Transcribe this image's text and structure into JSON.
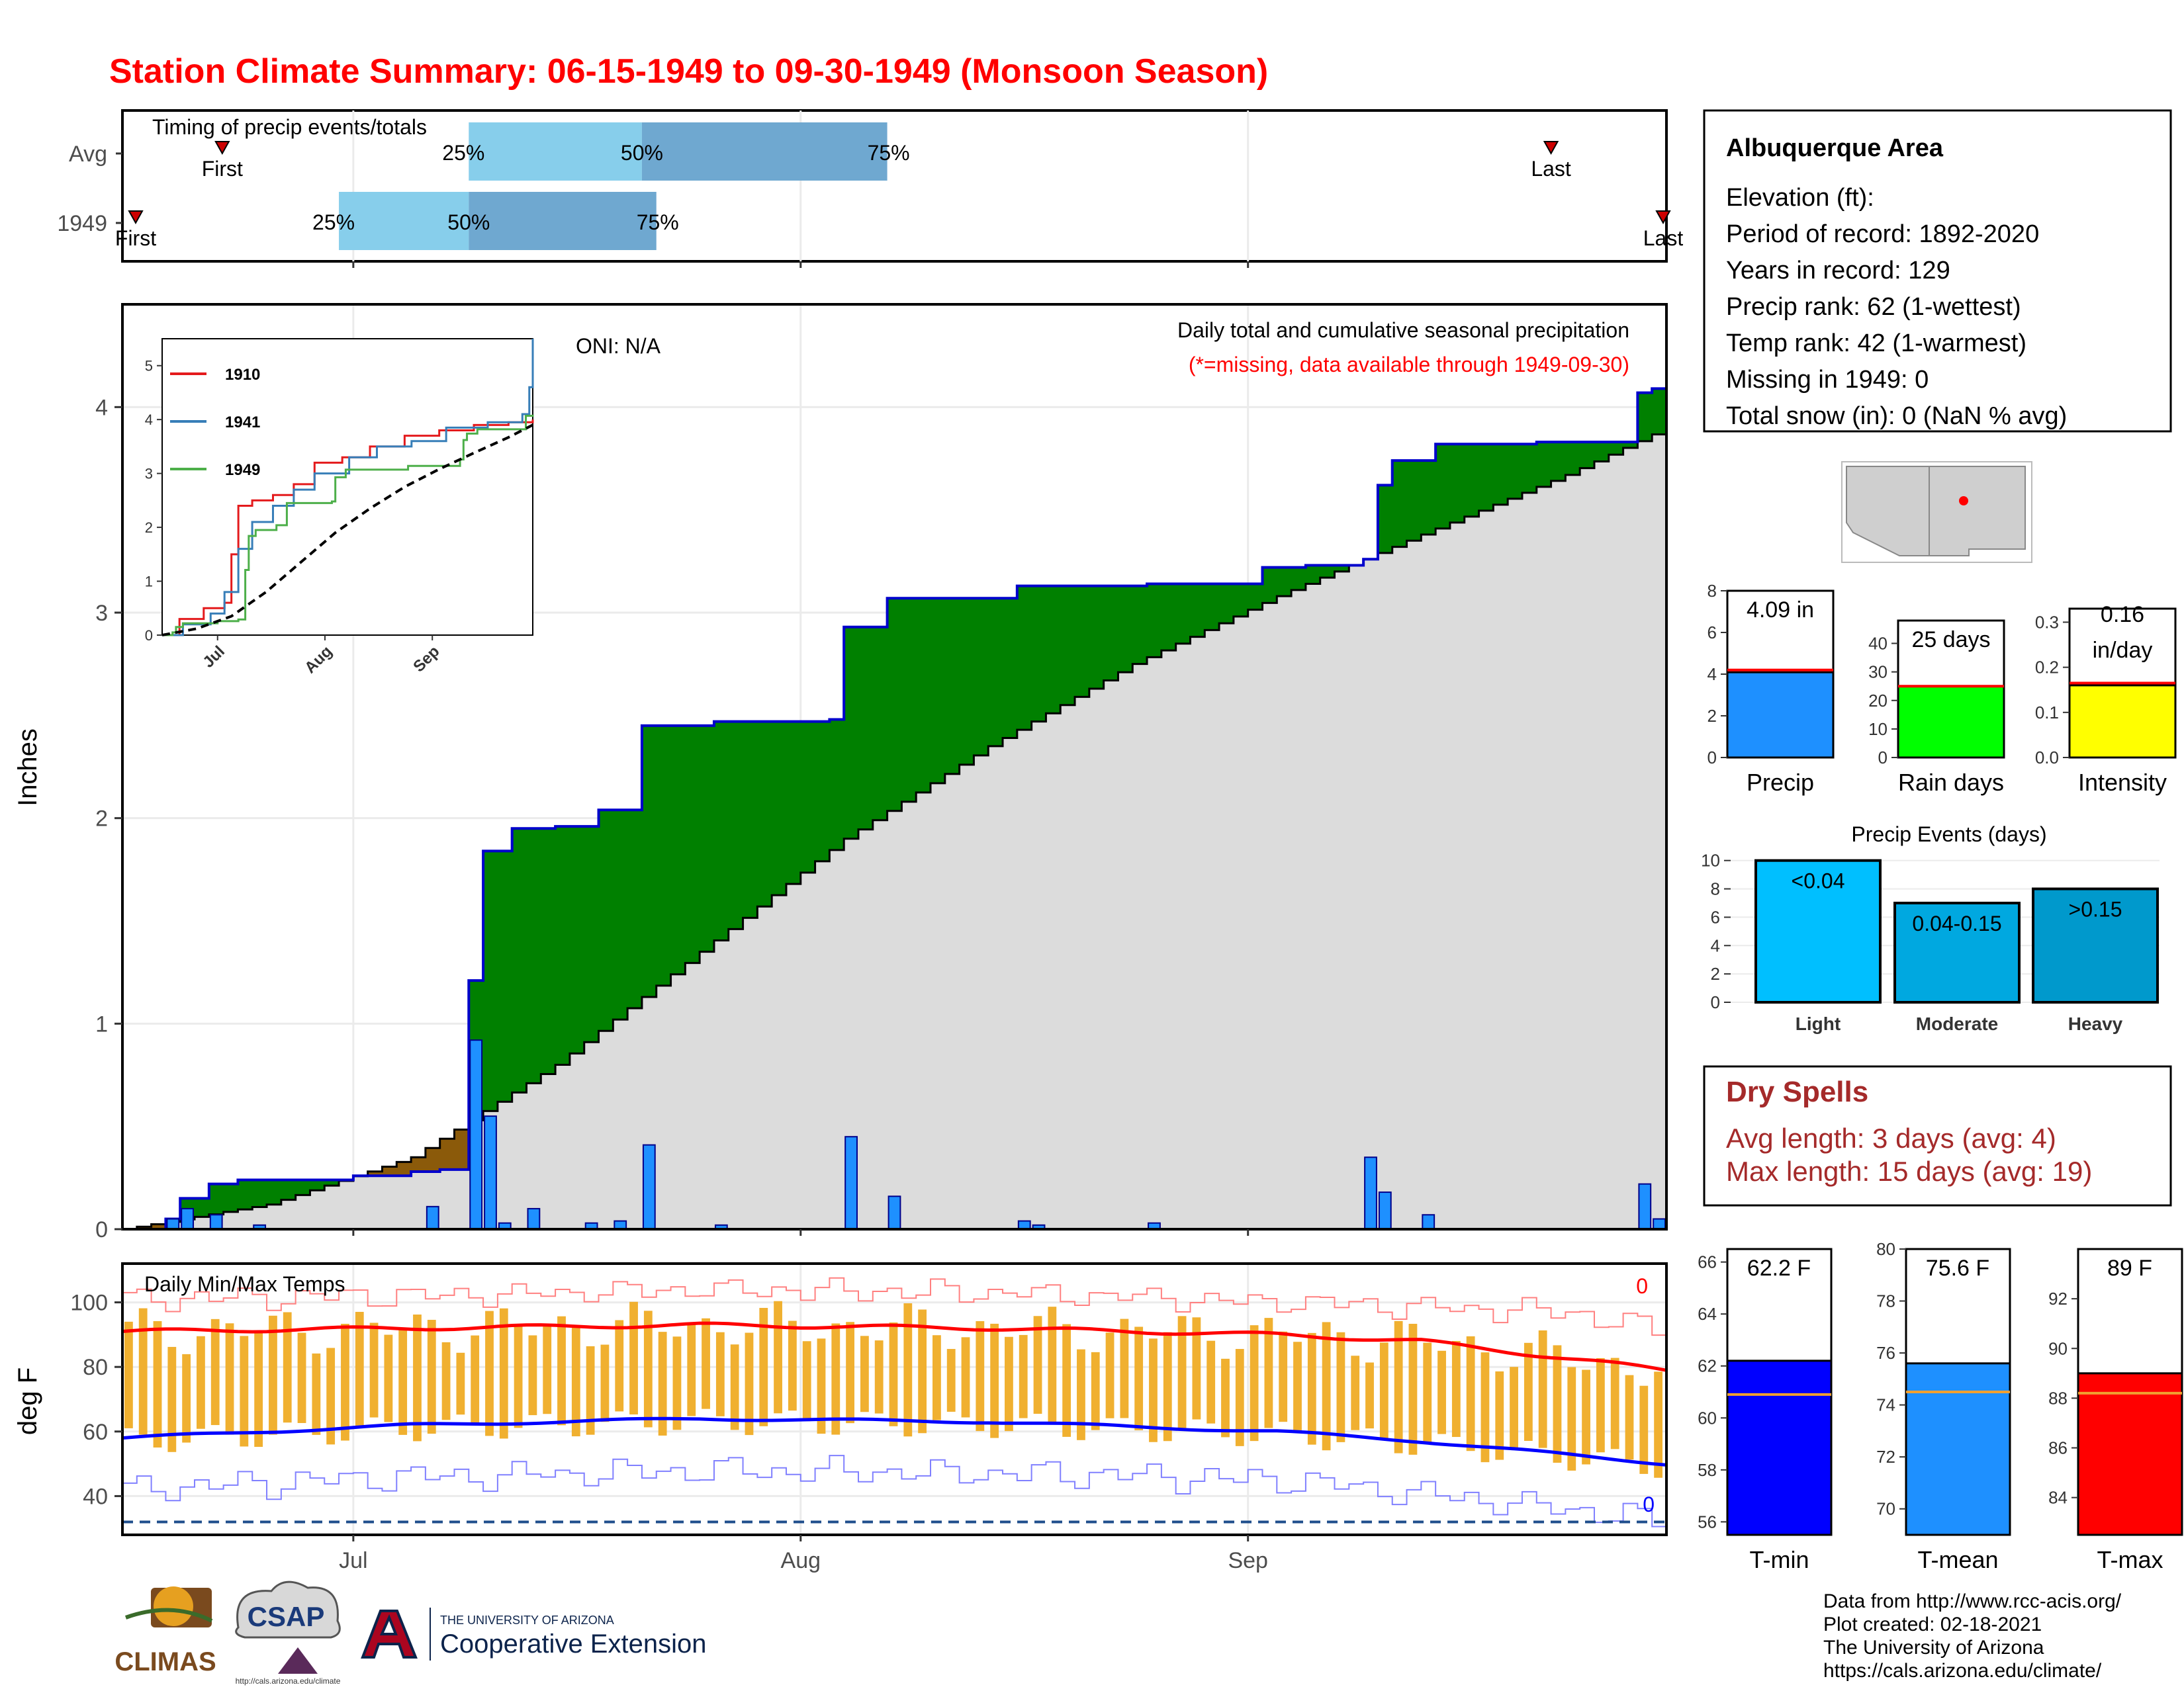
{
  "page": {
    "title": "Station Climate Summary: 06-15-1949 to 09-30-1949 (Monsoon Season)",
    "credits": [
      "Data from http://www.rcc-acis.org/",
      "Plot created: 02-18-2021",
      "The University of Arizona",
      "https://cals.arizona.edu/climate/"
    ],
    "logos": {
      "climas": "CLIMAS",
      "csap": "CSAP",
      "csap_url": "http://cals.arizona.edu/climate",
      "ua_small": "THE UNIVERSITY OF ARIZONA",
      "ua_big": "Cooperative Extension"
    }
  },
  "colors": {
    "title_red": "#ff0000",
    "above_avg_green": "#008000",
    "below_avg_brown": "#8b5a0a",
    "obs_line_blue": "#0000cc",
    "daily_bar_blue": "#1e90ff",
    "normal_fill_gray": "#dcdcdc",
    "temp_bar_orange": "#f0b030",
    "tmax_red": "#ff0000",
    "tmin_blue": "#0000ff",
    "quartile_light": "#87ceeb",
    "quartile_dark": "#6fa8d0",
    "dry_spell_red": "#a52a2a"
  },
  "info_box": {
    "station": "Albuquerque Area",
    "lines": [
      "Elevation (ft):",
      "Period of record: 1892-2020",
      "Years in record: 129",
      "Precip rank: 62 (1-wettest)",
      "Temp rank: 42 (1-warmest)",
      "Missing in 1949: 0",
      "Total snow (in): 0 (NaN % avg)"
    ]
  },
  "dry_spells": {
    "title": "Dry Spells",
    "avg": "Avg length: 3 days (avg: 4)",
    "max": "Max length: 15 days (avg: 19)"
  },
  "chart_data": [
    {
      "id": "timing",
      "type": "bar",
      "title": "Timing of precip events/totals",
      "rows": [
        {
          "label": "Avg",
          "first": "06-21",
          "q25": "07-09",
          "q50": "07-21",
          "q75": "08-07",
          "last": "09-22",
          "first_label": "First",
          "last_label": "Last",
          "q25_label": "25%",
          "q50_label": "50%",
          "q75_label": "75%"
        },
        {
          "label": "1949",
          "first": "06-15",
          "q25": "06-30",
          "q50": "07-09",
          "q75": "07-22",
          "last": "09-30",
          "first_label": "First",
          "last_label": "Last",
          "q25_label": "25%",
          "q50_label": "50%",
          "q75_label": "75%"
        }
      ]
    },
    {
      "id": "precip-main",
      "type": "area",
      "title": "Daily total and cumulative seasonal precipitation",
      "subtitle": "(*=missing, data available through 1949-09-30)",
      "annotation": "ONI: N/A",
      "ylabel": "Inches",
      "ylim": [
        0,
        4.5
      ],
      "yticks": [
        0,
        1,
        2,
        3,
        4
      ],
      "xticks": [
        "Jul",
        "Aug",
        "Sep"
      ],
      "xrange": [
        "06-15",
        "09-30"
      ],
      "normal_end": 3.9,
      "normal_curve": [
        [
          0,
          0
        ],
        [
          10,
          0.12
        ],
        [
          20,
          0.35
        ],
        [
          30,
          0.8
        ],
        [
          40,
          1.35
        ],
        [
          50,
          1.9
        ],
        [
          60,
          2.35
        ],
        [
          70,
          2.75
        ],
        [
          80,
          3.08
        ],
        [
          90,
          3.38
        ],
        [
          100,
          3.67
        ],
        [
          107,
          3.9
        ]
      ],
      "observed": [
        [
          0,
          0
        ],
        [
          3,
          0.05
        ],
        [
          4,
          0.15
        ],
        [
          6,
          0.22
        ],
        [
          8,
          0.24
        ],
        [
          16,
          0.26
        ],
        [
          17,
          0.26
        ],
        [
          20,
          0.28
        ],
        [
          22,
          0.29
        ],
        [
          24,
          1.21
        ],
        [
          25,
          1.84
        ],
        [
          27,
          1.95
        ],
        [
          30,
          1.96
        ],
        [
          33,
          2.04
        ],
        [
          36,
          2.45
        ],
        [
          41,
          2.47
        ],
        [
          49,
          2.48
        ],
        [
          50,
          2.93
        ],
        [
          53,
          3.07
        ],
        [
          62,
          3.13
        ],
        [
          71,
          3.14
        ],
        [
          79,
          3.22
        ],
        [
          82,
          3.23
        ],
        [
          86,
          3.26
        ],
        [
          87,
          3.62
        ],
        [
          88,
          3.74
        ],
        [
          91,
          3.82
        ],
        [
          98,
          3.83
        ],
        [
          105,
          4.07
        ],
        [
          106,
          4.09
        ]
      ],
      "daily": [
        [
          3,
          0.05
        ],
        [
          4,
          0.1
        ],
        [
          6,
          0.07
        ],
        [
          9,
          0.02
        ],
        [
          21,
          0.11
        ],
        [
          24,
          0.92
        ],
        [
          25,
          0.55
        ],
        [
          26,
          0.03
        ],
        [
          28,
          0.1
        ],
        [
          32,
          0.03
        ],
        [
          34,
          0.04
        ],
        [
          36,
          0.41
        ],
        [
          41,
          0.02
        ],
        [
          50,
          0.45
        ],
        [
          53,
          0.16
        ],
        [
          62,
          0.04
        ],
        [
          63,
          0.02
        ],
        [
          71,
          0.03
        ],
        [
          86,
          0.35
        ],
        [
          87,
          0.18
        ],
        [
          90,
          0.07
        ],
        [
          105,
          0.22
        ],
        [
          106,
          0.05
        ]
      ]
    },
    {
      "id": "inset",
      "type": "line",
      "xticks": [
        "Jul",
        "Aug",
        "Sep"
      ],
      "yticks": [
        0,
        1,
        2,
        3,
        4,
        5
      ],
      "ylim": [
        0,
        5.5
      ],
      "series": [
        {
          "name": "1910",
          "color": "#e41a1c",
          "points": [
            [
              0,
              0
            ],
            [
              5,
              0.3
            ],
            [
              12,
              0.5
            ],
            [
              18,
              0.6
            ],
            [
              20,
              1.5
            ],
            [
              22,
              2.4
            ],
            [
              26,
              2.5
            ],
            [
              32,
              2.6
            ],
            [
              38,
              2.8
            ],
            [
              44,
              3.2
            ],
            [
              52,
              3.3
            ],
            [
              60,
              3.5
            ],
            [
              70,
              3.7
            ],
            [
              80,
              3.8
            ],
            [
              90,
              3.9
            ],
            [
              100,
              3.95
            ],
            [
              107,
              4.0
            ]
          ]
        },
        {
          "name": "1941",
          "color": "#377eb8",
          "points": [
            [
              0,
              0
            ],
            [
              6,
              0.2
            ],
            [
              14,
              0.4
            ],
            [
              18,
              0.8
            ],
            [
              22,
              1.6
            ],
            [
              26,
              2.1
            ],
            [
              32,
              2.4
            ],
            [
              38,
              2.7
            ],
            [
              44,
              3.0
            ],
            [
              54,
              3.3
            ],
            [
              62,
              3.5
            ],
            [
              72,
              3.6
            ],
            [
              82,
              3.85
            ],
            [
              94,
              3.95
            ],
            [
              104,
              4.1
            ],
            [
              106,
              4.6
            ],
            [
              107,
              5.5
            ]
          ]
        },
        {
          "name": "1949",
          "color": "#4daf4a",
          "points": [
            [
              0,
              0
            ],
            [
              3,
              0.05
            ],
            [
              4,
              0.15
            ],
            [
              6,
              0.22
            ],
            [
              16,
              0.26
            ],
            [
              22,
              0.29
            ],
            [
              24,
              1.21
            ],
            [
              25,
              1.84
            ],
            [
              27,
              1.95
            ],
            [
              33,
              2.04
            ],
            [
              36,
              2.45
            ],
            [
              49,
              2.48
            ],
            [
              50,
              2.93
            ],
            [
              53,
              3.07
            ],
            [
              71,
              3.14
            ],
            [
              86,
              3.26
            ],
            [
              87,
              3.62
            ],
            [
              88,
              3.74
            ],
            [
              91,
              3.82
            ],
            [
              105,
              4.07
            ],
            [
              107,
              4.09
            ]
          ]
        },
        {
          "name": "",
          "color": "#000000",
          "points": [
            [
              0,
              0
            ],
            [
              10,
              0.12
            ],
            [
              20,
              0.35
            ],
            [
              30,
              0.8
            ],
            [
              40,
              1.35
            ],
            [
              50,
              1.9
            ],
            [
              60,
              2.35
            ],
            [
              70,
              2.75
            ],
            [
              80,
              3.08
            ],
            [
              90,
              3.38
            ],
            [
              100,
              3.67
            ],
            [
              107,
              3.9
            ]
          ]
        }
      ]
    },
    {
      "id": "temps",
      "type": "bar",
      "title": "Daily Min/Max Temps",
      "ylabel": "deg F",
      "ylim": [
        28,
        112
      ],
      "yticks": [
        40,
        60,
        80,
        100
      ],
      "freeze_line": 32,
      "max_count_label": "0",
      "min_count_label": "0",
      "xticks": [
        "Jul",
        "Aug",
        "Sep"
      ],
      "normal_max": [
        [
          0,
          91
        ],
        [
          20,
          92
        ],
        [
          40,
          93
        ],
        [
          60,
          92
        ],
        [
          80,
          90
        ],
        [
          90,
          88
        ],
        [
          107,
          79
        ]
      ],
      "normal_min": [
        [
          0,
          58
        ],
        [
          20,
          62
        ],
        [
          40,
          64
        ],
        [
          60,
          63
        ],
        [
          80,
          60
        ],
        [
          90,
          57
        ],
        [
          107,
          50
        ]
      ],
      "record_max": [
        [
          0,
          101
        ],
        [
          20,
          102
        ],
        [
          40,
          104
        ],
        [
          60,
          103
        ],
        [
          80,
          100
        ],
        [
          100,
          97
        ],
        [
          107,
          91
        ]
      ],
      "record_min": [
        [
          0,
          42
        ],
        [
          20,
          46
        ],
        [
          40,
          48
        ],
        [
          60,
          47
        ],
        [
          80,
          45
        ],
        [
          100,
          36
        ],
        [
          107,
          32
        ]
      ]
    },
    {
      "id": "precip-summary",
      "type": "bar",
      "panels": [
        {
          "name": "Precip",
          "label": "4.09 in",
          "value": 4.09,
          "avg": 4.2,
          "ylim": [
            0,
            8
          ],
          "yticks": [
            0,
            2,
            4,
            6,
            8
          ],
          "color": "#1e90ff"
        },
        {
          "name": "Rain days",
          "label": "25 days",
          "value": 25,
          "avg": 25,
          "ylim": [
            0,
            48
          ],
          "yticks": [
            0,
            10,
            20,
            30,
            40
          ],
          "color": "#00ff00"
        },
        {
          "name": "Intensity",
          "label": "0.16",
          "label2": "in/day",
          "value": 0.16,
          "avg": 0.165,
          "ylim": [
            0,
            0.33
          ],
          "yticks": [
            "0.0",
            "0.1",
            "0.2",
            "0.3"
          ],
          "color": "#ffff00"
        }
      ]
    },
    {
      "id": "precip-events",
      "type": "bar",
      "title": "Precip Events (days)",
      "categories": [
        "Light",
        "Moderate",
        "Heavy"
      ],
      "values": [
        10,
        7,
        8
      ],
      "bar_labels": [
        "<0.04",
        "0.04-0.15",
        ">0.15"
      ],
      "ylim": [
        0,
        10.5
      ],
      "yticks": [
        0,
        2,
        4,
        6,
        8,
        10
      ],
      "colors": [
        "#00bfff",
        "#00a8e0",
        "#0099cc"
      ]
    },
    {
      "id": "temp-summary",
      "type": "bar",
      "panels": [
        {
          "name": "T-min",
          "label": "62.2 F",
          "value": 62.2,
          "avg": 60.9,
          "ylim": [
            55.5,
            66.5
          ],
          "yticks": [
            56,
            58,
            60,
            62,
            64,
            66
          ],
          "color": "#0000ff"
        },
        {
          "name": "T-mean",
          "label": "75.6 F",
          "value": 75.6,
          "avg": 74.5,
          "ylim": [
            69,
            80
          ],
          "yticks": [
            70,
            72,
            74,
            76,
            78,
            80
          ],
          "color": "#1e90ff"
        },
        {
          "name": "T-max",
          "label": "89 F",
          "value": 89.0,
          "avg": 88.2,
          "ylim": [
            82.5,
            94
          ],
          "yticks": [
            84,
            86,
            88,
            90,
            92
          ],
          "color": "#ff0000"
        }
      ]
    }
  ]
}
